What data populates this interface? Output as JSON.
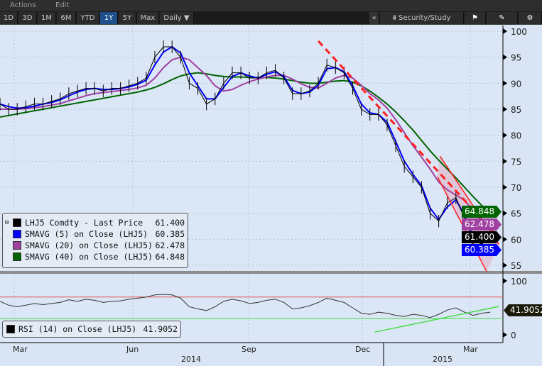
{
  "menu": {
    "actions": "Actions",
    "edit": "Edit"
  },
  "toolbar": {
    "ranges": [
      "1D",
      "3D",
      "1M",
      "6M",
      "YTD",
      "1Y",
      "5Y",
      "Max"
    ],
    "active": "1Y",
    "frequency": "Daily ▼",
    "collapse": "«",
    "security_study": "Security/Study",
    "flag_icon": "flag-icon",
    "draw_icon": "pencil-icon",
    "settings_icon": "gear-icon"
  },
  "legend": {
    "items": [
      {
        "label": "LHJ5 Comdty - Last Price",
        "value": "61.400",
        "color": "#000000"
      },
      {
        "label": "SMAVG (5) on Close (LHJ5)",
        "value": "60.385",
        "color": "#0000ff"
      },
      {
        "label": "SMAVG (20) on Close (LHJ5)",
        "value": "62.478",
        "color": "#a040a0"
      },
      {
        "label": "SMAVG (40) on Close (LHJ5)",
        "value": "64.848",
        "color": "#006400"
      }
    ]
  },
  "rsi_legend": {
    "label": "RSI (14) on Close (LHJ5)",
    "value": "41.9052",
    "color": "#000000"
  },
  "price_tags": [
    {
      "value": "64.848",
      "color": "#006400"
    },
    {
      "value": "62.478",
      "color": "#a040a0"
    },
    {
      "value": "60.385",
      "color": "#0000ff"
    },
    {
      "value": "61.400",
      "color": "#000000"
    }
  ],
  "rsi_tag": {
    "value": "41.9052",
    "color": "#1a1a0a"
  },
  "chart_data": {
    "type": "line",
    "start_date": "2014-02-14",
    "interval": "weekly",
    "x_tick_labels": [
      "Mar",
      "Jun",
      "Sep",
      "Dec",
      "Mar"
    ],
    "x_year_labels": [
      "2014",
      "2015"
    ],
    "price_panel": {
      "ylim": [
        53,
        101
      ],
      "ticks": [
        55,
        60,
        65,
        70,
        75,
        80,
        85,
        90,
        95,
        100
      ],
      "grid": true,
      "series": [
        {
          "name": "LHJ5 Comdty - Last Price",
          "color": "#000000",
          "values": [
            86,
            85,
            85,
            85.5,
            86,
            86,
            86.5,
            87,
            88,
            88.5,
            89,
            89,
            88.5,
            89,
            89,
            89.5,
            90,
            91,
            95,
            97,
            97,
            95,
            90,
            89,
            86,
            87,
            90,
            92,
            92,
            91,
            91,
            92,
            92.5,
            91,
            88,
            88,
            88.5,
            90,
            93.5,
            93,
            92,
            89,
            85,
            84,
            84,
            82,
            78,
            74,
            72,
            70,
            65,
            63.5,
            67,
            68,
            64,
            60,
            59,
            61.4
          ]
        },
        {
          "name": "SMAVG (5) on Close (LHJ5)",
          "color": "#0000ff",
          "values": [
            86,
            85.5,
            85.2,
            85.3,
            85.6,
            86,
            86.3,
            86.8,
            87.6,
            88.3,
            88.8,
            89,
            88.8,
            88.8,
            89,
            89.3,
            89.8,
            90.6,
            93.5,
            96,
            97,
            95.8,
            92,
            89.5,
            87,
            87,
            89.2,
            91.3,
            92,
            91.4,
            91,
            91.7,
            92.2,
            91.3,
            88.6,
            88,
            88.3,
            89.6,
            92.8,
            93,
            92.2,
            89.5,
            86,
            84.3,
            84,
            82.5,
            78.8,
            75,
            72.5,
            70.3,
            66,
            63.8,
            66.2,
            67.6,
            64.6,
            60.5,
            59.2,
            60.385
          ]
        },
        {
          "name": "SMAVG (20) on Close (LHJ5)",
          "color": "#a040a0",
          "values": [
            85,
            85,
            85,
            85.1,
            85.3,
            85.5,
            85.8,
            86.1,
            86.6,
            87.1,
            87.6,
            88,
            88.2,
            88.4,
            88.6,
            88.8,
            89.1,
            89.6,
            91,
            93,
            94.5,
            95,
            94.5,
            93,
            91.5,
            89.5,
            88.5,
            88.8,
            89.6,
            90.3,
            90.8,
            91.2,
            91.5,
            91.5,
            90.8,
            89.9,
            89.2,
            89.1,
            90,
            91,
            91.5,
            91,
            89.6,
            88,
            86.8,
            85.2,
            83,
            80.5,
            78,
            75.8,
            73.5,
            71,
            69.5,
            68.5,
            67.5,
            65.5,
            63.5,
            62.478
          ]
        },
        {
          "name": "SMAVG (40) on Close (LHJ5)",
          "color": "#006400",
          "values": [
            83.5,
            83.8,
            84.1,
            84.4,
            84.7,
            85,
            85.3,
            85.6,
            85.9,
            86.2,
            86.5,
            86.8,
            87.1,
            87.4,
            87.7,
            88,
            88.3,
            88.7,
            89.2,
            89.9,
            90.7,
            91.4,
            91.8,
            92,
            91.8,
            91.5,
            91.3,
            91.2,
            91.2,
            91.1,
            91.1,
            91.1,
            91,
            90.8,
            90.5,
            90.2,
            90,
            90,
            90.2,
            90.4,
            90.5,
            90.2,
            89.5,
            88.5,
            87.3,
            86,
            84.5,
            82.8,
            81,
            79,
            77,
            75.2,
            73.5,
            71.8,
            70,
            68.2,
            66.5,
            64.848
          ]
        }
      ],
      "trendlines": [
        {
          "style": "dashed",
          "color": "#ff2020",
          "from": [
            "2014-10-31",
            98.1
          ],
          "to": [
            "2015-03-27",
            60.3
          ]
        },
        {
          "style": "solid",
          "color": "#ff2020",
          "from": [
            "2015-02-07",
            76
          ],
          "to": [
            "2015-03-27",
            59
          ]
        },
        {
          "style": "solid",
          "color": "#ff2020",
          "from": [
            "2015-02-05",
            72
          ],
          "to": [
            "2015-03-17",
            53.8
          ]
        }
      ]
    },
    "rsi_panel": {
      "ylim": [
        -10,
        110
      ],
      "ticks": [
        0,
        100
      ],
      "overbought": 70,
      "oversold": 30,
      "series": [
        {
          "name": "RSI (14) on Close (LHJ5)",
          "color": "#333333",
          "values": [
            62,
            55,
            52,
            55,
            58,
            56,
            58,
            60,
            65,
            62,
            66,
            64,
            60,
            62,
            63,
            66,
            68,
            70,
            74,
            75,
            74,
            68,
            52,
            48,
            45,
            52,
            62,
            66,
            63,
            58,
            60,
            64,
            66,
            60,
            48,
            50,
            54,
            60,
            68,
            64,
            60,
            50,
            40,
            38,
            42,
            40,
            36,
            34,
            38,
            36,
            32,
            38,
            46,
            50,
            42,
            36,
            40,
            41.9052
          ]
        }
      ],
      "trendline": {
        "color": "#44dd44",
        "from": [
          "2014-12-16",
          5
        ],
        "to": [
          "2015-03-27",
          52.6
        ]
      }
    }
  }
}
